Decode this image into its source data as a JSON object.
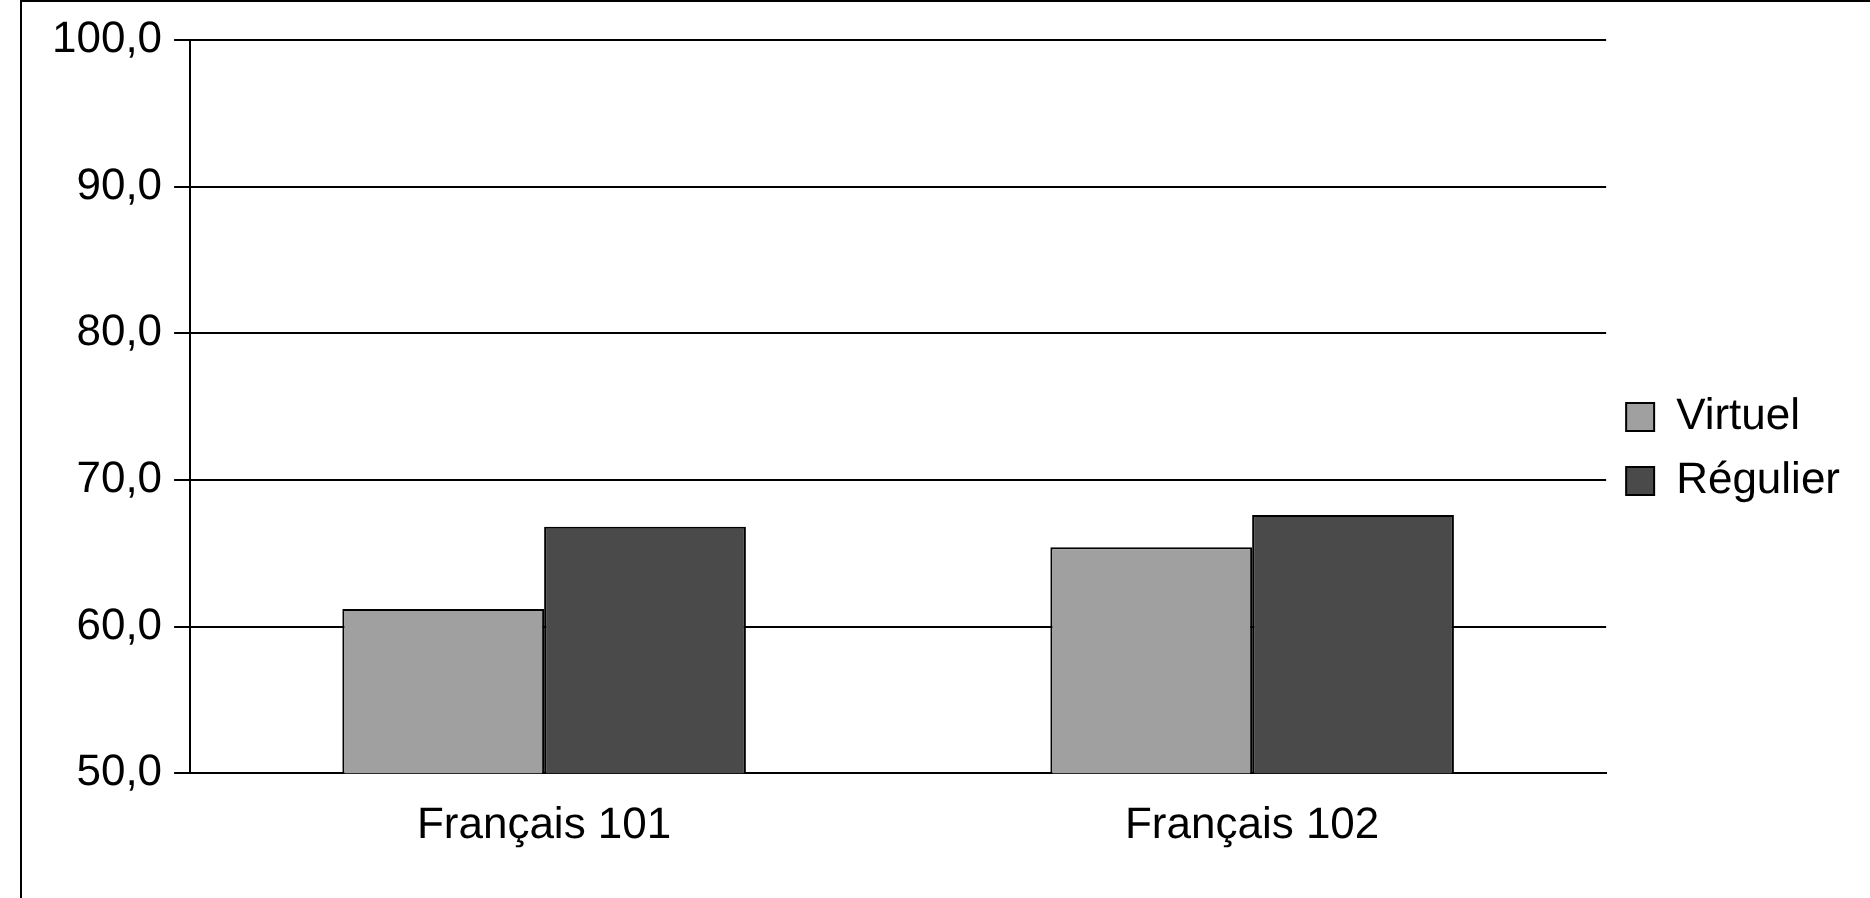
{
  "chart_data": {
    "type": "bar",
    "categories": [
      "Français 101",
      "Français 102"
    ],
    "series": [
      {
        "name": "Virtuel",
        "color": "#a0a0a0",
        "values": [
          61.2,
          65.4
        ]
      },
      {
        "name": "Régulier",
        "color": "#4a4a4a",
        "values": [
          66.8,
          67.6
        ]
      }
    ],
    "ylim": [
      50,
      100
    ],
    "yticks": [
      {
        "value": 50,
        "label": "50,0"
      },
      {
        "value": 60,
        "label": "60,0"
      },
      {
        "value": 70,
        "label": "70,0"
      },
      {
        "value": 80,
        "label": "80,0"
      },
      {
        "value": 90,
        "label": "90,0"
      },
      {
        "value": 100,
        "label": "100,0"
      }
    ],
    "grid": "y",
    "legend": "right"
  }
}
